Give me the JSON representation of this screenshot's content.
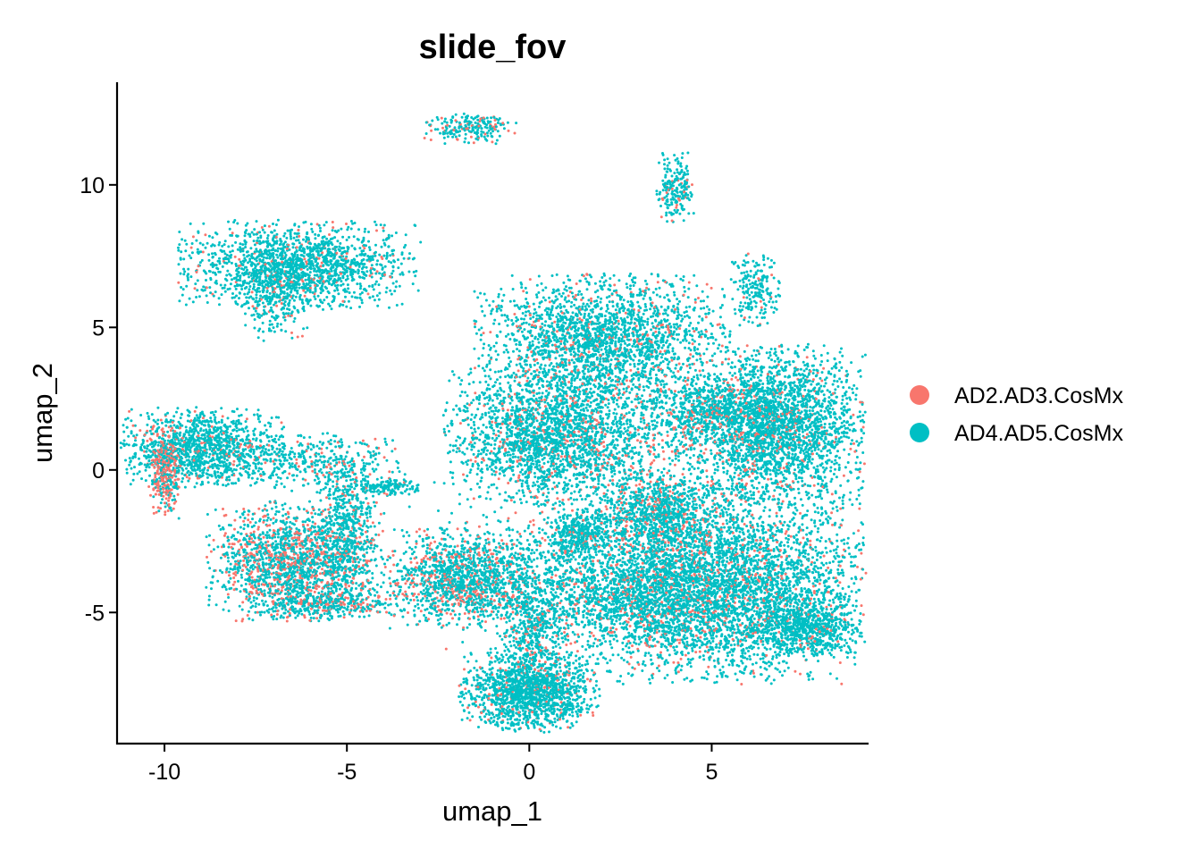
{
  "chart_data": {
    "type": "scatter",
    "title": "slide_fov",
    "xlabel": "umap_1",
    "ylabel": "umap_2",
    "xlim": [
      -11.3,
      9.3
    ],
    "ylim": [
      -9.6,
      13.6
    ],
    "xticks": [
      -10,
      -5,
      0,
      5
    ],
    "yticks": [
      -5,
      0,
      5,
      10
    ],
    "grid": false,
    "legend_position": "right",
    "series": [
      {
        "name": "AD2.AD3.CosMx",
        "color": "#F8766D"
      },
      {
        "name": "AD4.AD5.CosMx",
        "color": "#00BFC4"
      }
    ],
    "clusters": [
      {
        "cx": -1.6,
        "cy": 12.0,
        "rx": 0.75,
        "ry": 0.32,
        "n": 220,
        "red_frac": 0.25
      },
      {
        "cx": 4.0,
        "cy": 9.9,
        "rx": 0.3,
        "ry": 0.7,
        "n": 200,
        "red_frac": 0.1
      },
      {
        "cx": 6.2,
        "cy": 6.3,
        "rx": 0.38,
        "ry": 0.75,
        "n": 200,
        "red_frac": 0.05
      },
      {
        "cx": -6.3,
        "cy": 7.2,
        "rx": 1.9,
        "ry": 0.9,
        "n": 1600,
        "red_frac": 0.08
      },
      {
        "cx": -7.0,
        "cy": 6.1,
        "rx": 0.6,
        "ry": 0.9,
        "n": 300,
        "red_frac": 0.08
      },
      {
        "cx": -9.0,
        "cy": 0.8,
        "rx": 1.3,
        "ry": 0.8,
        "n": 1200,
        "red_frac": 0.1
      },
      {
        "cx": -10.0,
        "cy": 0.0,
        "rx": 0.25,
        "ry": 1.0,
        "n": 350,
        "red_frac": 0.6
      },
      {
        "cx": -6.0,
        "cy": 0.3,
        "rx": 1.5,
        "ry": 0.6,
        "n": 350,
        "red_frac": 0.15
      },
      {
        "cx": -6.4,
        "cy": -3.2,
        "rx": 1.4,
        "ry": 1.2,
        "n": 1800,
        "red_frac": 0.3
      },
      {
        "cx": -5.0,
        "cy": -1.8,
        "rx": 0.5,
        "ry": 1.6,
        "n": 500,
        "red_frac": 0.1
      },
      {
        "cx": -5.5,
        "cy": -4.7,
        "rx": 1.2,
        "ry": 0.3,
        "n": 300,
        "red_frac": 0.3
      },
      {
        "cx": -4.0,
        "cy": -0.6,
        "rx": 0.6,
        "ry": 0.2,
        "n": 150,
        "red_frac": 0.05
      },
      {
        "cx": 2.0,
        "cy": 4.6,
        "rx": 2.0,
        "ry": 1.3,
        "n": 2200,
        "red_frac": 0.1
      },
      {
        "cx": 0.6,
        "cy": 1.2,
        "rx": 1.7,
        "ry": 1.4,
        "n": 2200,
        "red_frac": 0.12
      },
      {
        "cx": 6.8,
        "cy": 1.6,
        "rx": 1.4,
        "ry": 1.6,
        "n": 2500,
        "red_frac": 0.08
      },
      {
        "cx": 4.8,
        "cy": 2.0,
        "rx": 1.3,
        "ry": 0.8,
        "n": 700,
        "red_frac": 0.15
      },
      {
        "cx": 5.2,
        "cy": -4.0,
        "rx": 2.5,
        "ry": 2.0,
        "n": 4500,
        "red_frac": 0.12
      },
      {
        "cx": 7.5,
        "cy": -5.5,
        "rx": 0.9,
        "ry": 0.6,
        "n": 700,
        "red_frac": 0.05
      },
      {
        "cx": 3.5,
        "cy": -1.5,
        "rx": 0.9,
        "ry": 0.9,
        "n": 700,
        "red_frac": 0.2
      },
      {
        "cx": 1.4,
        "cy": -2.3,
        "rx": 0.55,
        "ry": 0.55,
        "n": 350,
        "red_frac": 0.1
      },
      {
        "cx": -1.8,
        "cy": -3.8,
        "rx": 1.2,
        "ry": 1.0,
        "n": 1300,
        "red_frac": 0.25
      },
      {
        "cx": 0.0,
        "cy": -7.8,
        "rx": 1.1,
        "ry": 0.8,
        "n": 1500,
        "red_frac": 0.08
      },
      {
        "cx": 0.1,
        "cy": -5.5,
        "rx": 0.6,
        "ry": 1.5,
        "n": 600,
        "red_frac": 0.1
      },
      {
        "cx": 3.0,
        "cy": -4.5,
        "rx": 1.5,
        "ry": 1.0,
        "n": 700,
        "red_frac": 0.1
      },
      {
        "cx": 1.0,
        "cy": -3.5,
        "rx": 2.5,
        "ry": 2.0,
        "n": 800,
        "red_frac": 0.15
      },
      {
        "cx": 3.5,
        "cy": 0.5,
        "rx": 2.0,
        "ry": 1.8,
        "n": 500,
        "red_frac": 0.25
      }
    ]
  }
}
